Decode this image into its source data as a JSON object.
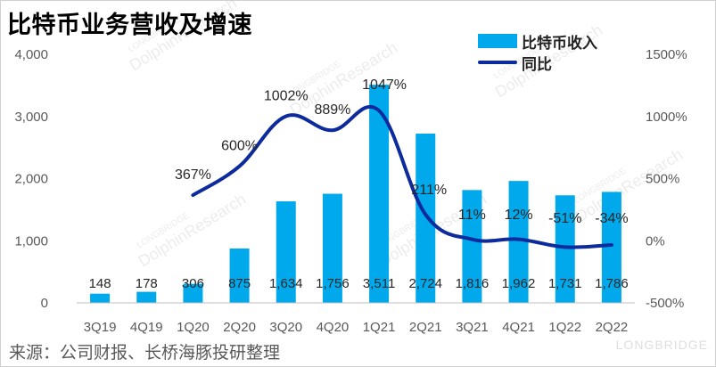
{
  "title": "比特币业务营收及增速",
  "source": "来源：公司财报、长桥海豚投研整理",
  "watermarks": {
    "brand": "LONGBRIDGE",
    "research": "DolphinResearch"
  },
  "colors": {
    "bar": "#00a9ec",
    "line": "#0d2b9c",
    "axis": "#bfbfbf"
  },
  "chart_data": {
    "type": "bar",
    "categories": [
      "3Q19",
      "4Q19",
      "1Q20",
      "2Q20",
      "3Q20",
      "4Q20",
      "1Q21",
      "2Q21",
      "3Q21",
      "4Q21",
      "1Q22",
      "2Q22"
    ],
    "series": [
      {
        "name": "比特币收入",
        "type": "bar",
        "axis": "left",
        "values": [
          148,
          178,
          306,
          875,
          1634,
          1756,
          3511,
          2724,
          1816,
          1962,
          1731,
          1786
        ],
        "labels": [
          "148",
          "178",
          "306",
          "875",
          "1,634",
          "1,756",
          "3,511",
          "2,724",
          "1,816",
          "1,962",
          "1,731",
          "1,786"
        ]
      },
      {
        "name": "同比",
        "type": "line",
        "axis": "right",
        "values": [
          null,
          null,
          367,
          600,
          1002,
          889,
          1047,
          211,
          11,
          12,
          -51,
          -34
        ],
        "labels": [
          null,
          null,
          "367%",
          "600%",
          "1002%",
          "889%",
          "1047%",
          "211%",
          "11%",
          "12%",
          "-51%",
          "-34%"
        ]
      }
    ],
    "y_left": {
      "min": 0,
      "max": 4000,
      "ticks": [
        "0",
        "1,000",
        "2,000",
        "3,000",
        "4,000"
      ]
    },
    "y_right": {
      "min": -500,
      "max": 1500,
      "ticks": [
        "-500%",
        "0%",
        "500%",
        "1000%",
        "1500%"
      ]
    },
    "legend_position": "top-right",
    "grid": false
  }
}
